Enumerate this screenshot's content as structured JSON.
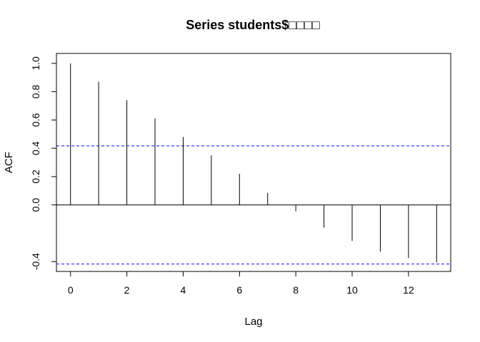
{
  "chart_data": {
    "type": "acf",
    "title": "Series  students$□□□□",
    "xlabel": "Lag",
    "ylabel": "ACF",
    "xlim": [
      -0.5,
      13.5
    ],
    "ylim": [
      -0.47,
      1.07
    ],
    "x_ticks": [
      0,
      2,
      4,
      6,
      8,
      10,
      12
    ],
    "y_ticks": [
      -0.4,
      0.0,
      0.2,
      0.4,
      0.6,
      0.8,
      1.0
    ],
    "y_tick_labels": [
      "-0.4",
      "0.0",
      "0.2",
      "0.4",
      "0.6",
      "0.8",
      "1.0"
    ],
    "lags": [
      0,
      1,
      2,
      3,
      4,
      5,
      6,
      7,
      8,
      9,
      10,
      11,
      12,
      13
    ],
    "values": [
      1.0,
      0.87,
      0.74,
      0.61,
      0.48,
      0.35,
      0.22,
      0.085,
      -0.045,
      -0.16,
      -0.255,
      -0.33,
      -0.375,
      -0.405
    ],
    "confidence_band": [
      0.417,
      -0.417
    ],
    "band_color": "#3a3aff",
    "grid": false,
    "legend": "none"
  }
}
